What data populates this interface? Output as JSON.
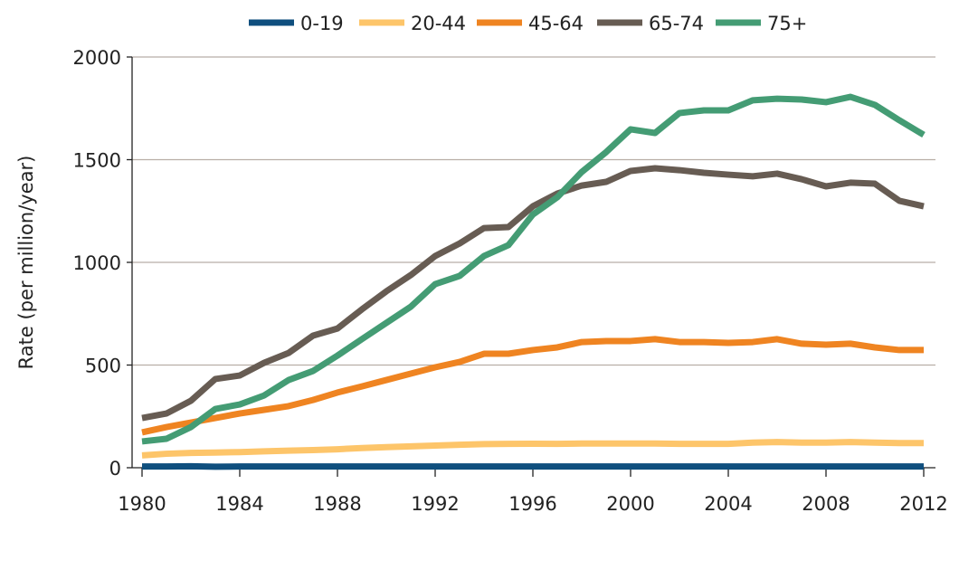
{
  "chart_data": {
    "type": "line",
    "title": "",
    "xlabel": "",
    "ylabel": "Rate (per million/year)",
    "xlim": [
      1980,
      2012
    ],
    "ylim": [
      0,
      2000
    ],
    "grid": true,
    "legend_position": "top-center",
    "x_ticks": [
      "1980",
      "1984",
      "1988",
      "1992",
      "1996",
      "2000",
      "2004",
      "2008",
      "2012"
    ],
    "y_ticks": [
      "0",
      "500",
      "1000",
      "1500",
      "2000"
    ],
    "x": [
      1980,
      1981,
      1982,
      1983,
      1984,
      1985,
      1986,
      1987,
      1988,
      1989,
      1990,
      1991,
      1992,
      1993,
      1994,
      1995,
      1996,
      1997,
      1998,
      1999,
      2000,
      2001,
      2002,
      2003,
      2004,
      2005,
      2006,
      2007,
      2008,
      2009,
      2010,
      2011,
      2012
    ],
    "series": [
      {
        "name": "0-19",
        "color": "#0f4f7e",
        "values": [
          6,
          6,
          7,
          5,
          6,
          6,
          6,
          6,
          6,
          6,
          6,
          6,
          6,
          6,
          6,
          6,
          6,
          6,
          6,
          6,
          6,
          6,
          6,
          6,
          6,
          6,
          6,
          6,
          6,
          6,
          6,
          6,
          6
        ]
      },
      {
        "name": "20-44",
        "color": "#fdc56a",
        "values": [
          60,
          68,
          72,
          74,
          76,
          80,
          83,
          86,
          90,
          96,
          100,
          104,
          108,
          112,
          115,
          116,
          117,
          116,
          118,
          118,
          118,
          118,
          116,
          116,
          116,
          122,
          125,
          122,
          122,
          125,
          122,
          120,
          120
        ]
      },
      {
        "name": "45-64",
        "color": "#ef8421",
        "values": [
          172,
          198,
          220,
          242,
          264,
          282,
          300,
          330,
          366,
          396,
          427,
          458,
          489,
          515,
          555,
          555,
          573,
          586,
          612,
          617,
          617,
          626,
          612,
          612,
          608,
          612,
          626,
          604,
          599,
          604,
          586,
          573,
          573
        ]
      },
      {
        "name": "65-74",
        "color": "#675c53",
        "values": [
          242,
          264,
          326,
          432,
          449,
          511,
          559,
          643,
          678,
          771,
          859,
          938,
          1031,
          1092,
          1167,
          1172,
          1273,
          1335,
          1374,
          1392,
          1445,
          1458,
          1449,
          1436,
          1427,
          1419,
          1432,
          1405,
          1370,
          1388,
          1383,
          1300,
          1273
        ]
      },
      {
        "name": "75+",
        "color": "#449c74",
        "values": [
          128,
          141,
          198,
          286,
          308,
          352,
          427,
          471,
          546,
          626,
          705,
          784,
          894,
          934,
          1031,
          1084,
          1233,
          1317,
          1440,
          1537,
          1648,
          1630,
          1727,
          1740,
          1740,
          1789,
          1797,
          1793,
          1780,
          1806,
          1767,
          1692,
          1621
        ]
      }
    ]
  }
}
